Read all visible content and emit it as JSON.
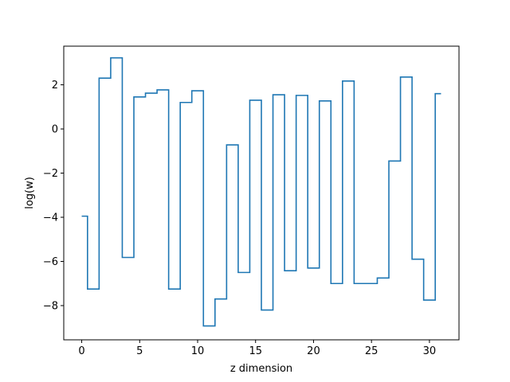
{
  "chart_data": {
    "type": "line",
    "drawstyle": "steps-mid",
    "title": "",
    "xlabel": "z dimension",
    "ylabel": "log(w)",
    "xlim": [
      -1.55,
      32.55
    ],
    "ylim": [
      -9.55,
      3.75
    ],
    "xticks": [
      0,
      5,
      10,
      15,
      20,
      25,
      30
    ],
    "yticks": [
      -8,
      -6,
      -4,
      -2,
      0,
      2
    ],
    "grid": false,
    "legend": "none",
    "series": [
      {
        "color": "#1f77b4",
        "x": [
          0,
          1,
          2,
          3,
          4,
          5,
          6,
          7,
          8,
          9,
          10,
          11,
          12,
          13,
          14,
          15,
          16,
          17,
          18,
          19,
          20,
          21,
          22,
          23,
          24,
          25,
          26,
          27,
          28,
          29,
          30,
          31
        ],
        "y": [
          -3.95,
          -7.25,
          2.3,
          3.22,
          -5.82,
          1.45,
          1.62,
          1.77,
          -7.25,
          1.2,
          1.73,
          -8.92,
          -7.7,
          -0.72,
          -6.5,
          1.3,
          -8.2,
          1.55,
          -6.42,
          1.52,
          -6.3,
          1.27,
          -7.0,
          2.17,
          -7.0,
          -7.0,
          -6.75,
          -1.45,
          2.35,
          -5.9,
          -7.75,
          1.6
        ]
      }
    ]
  }
}
